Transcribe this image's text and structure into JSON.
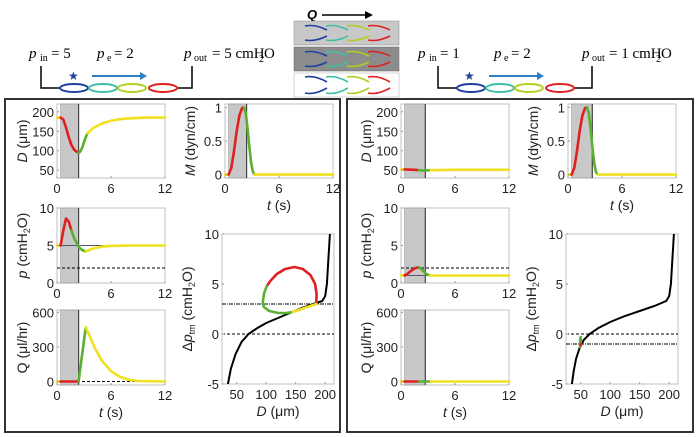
{
  "header": {
    "left": {
      "p_in_label": "p",
      "p_in_sub": "in",
      "p_in_value": "= 5",
      "p_e_label": "p",
      "p_e_sub": "e",
      "p_e_value": "= 2",
      "p_out_label": "p",
      "p_out_sub": "out",
      "p_out_value": "= 5 cmH",
      "p_out_unit_sub": "2",
      "p_out_unit_end": "O"
    },
    "right": {
      "p_in_label": "p",
      "p_in_sub": "in",
      "p_in_value": "= 1",
      "p_e_label": "p",
      "p_e_sub": "e",
      "p_e_value": "= 2",
      "p_out_label": "p",
      "p_out_sub": "out",
      "p_out_value": "= 1 cmH",
      "p_out_unit_sub": "2",
      "p_out_unit_end": "O"
    },
    "center": {
      "flow_label": "Q",
      "panel_backgrounds": [
        "#c8c8c8",
        "#8c8c8c",
        "#ffffff"
      ]
    },
    "lymphangion_colors": [
      "#2040a0",
      "#40c0a0",
      "#b0d020",
      "#e02020"
    ],
    "star_color": "#2040a0",
    "arrow_color": "#2a7fc4"
  },
  "colors": {
    "contraction": "#e02020",
    "relaxation": "#5ab030",
    "diastole": "#f0e020",
    "shade": "#c8c8c8",
    "line": "#000000"
  },
  "chart_data": [
    {
      "id": "left-D",
      "type": "line",
      "panel": "left",
      "xlabel": "",
      "ylabel": "D (μm)",
      "ylabel_italic": "D",
      "ylabel_rest": " (μm)",
      "xlim": [
        0,
        12
      ],
      "ylim": [
        30,
        220
      ],
      "xticks": [
        0,
        6,
        12
      ],
      "yticks": [
        50,
        100,
        150,
        200
      ],
      "shade": [
        0.4,
        2.4
      ],
      "vline": 2.4,
      "segments": [
        {
          "phase": "diastole",
          "x": [
            0,
            0.4
          ],
          "y": [
            185,
            185
          ]
        },
        {
          "phase": "contraction",
          "x": [
            0.4,
            0.7,
            1.0,
            1.3,
            1.6,
            1.9,
            2.2,
            2.4
          ],
          "y": [
            185,
            180,
            160,
            135,
            115,
            103,
            97,
            95
          ]
        },
        {
          "phase": "relaxation",
          "x": [
            2.4,
            2.6,
            2.8,
            3.0,
            3.2,
            3.4
          ],
          "y": [
            95,
            98,
            108,
            122,
            135,
            145
          ]
        },
        {
          "phase": "diastole",
          "x": [
            3.4,
            4,
            5,
            6,
            7,
            8,
            10,
            12
          ],
          "y": [
            145,
            158,
            170,
            177,
            181,
            183,
            185,
            185
          ]
        }
      ]
    },
    {
      "id": "left-M",
      "type": "line",
      "panel": "left",
      "xlabel": "t (s)",
      "ylabel": "M (dyn/cm)",
      "xlim": [
        0,
        12
      ],
      "ylim": [
        -0.05,
        1.05
      ],
      "xticks": [
        0,
        6,
        12
      ],
      "yticks": [
        0,
        0.5,
        1
      ],
      "shade": [
        0.4,
        2.4
      ],
      "vline": 2.4,
      "segments": [
        {
          "phase": "diastole",
          "x": [
            0,
            0.4
          ],
          "y": [
            0,
            0
          ]
        },
        {
          "phase": "contraction",
          "x": [
            0.4,
            0.7,
            1.0,
            1.3,
            1.6,
            1.9,
            2.1
          ],
          "y": [
            0,
            0.1,
            0.35,
            0.65,
            0.88,
            0.99,
            1.0
          ]
        },
        {
          "phase": "relaxation",
          "x": [
            2.1,
            2.3,
            2.5,
            2.7,
            2.9,
            3.1,
            3.3
          ],
          "y": [
            1.0,
            0.92,
            0.7,
            0.42,
            0.18,
            0.04,
            0
          ]
        },
        {
          "phase": "diastole",
          "x": [
            3.3,
            12
          ],
          "y": [
            0,
            0
          ]
        }
      ]
    },
    {
      "id": "left-p",
      "type": "line",
      "panel": "left",
      "xlabel": "",
      "ylabel": "p (cmH2O)",
      "xlim": [
        0,
        12
      ],
      "ylim": [
        0,
        10
      ],
      "xticks": [
        0,
        6,
        12
      ],
      "yticks": [
        0,
        5,
        10
      ],
      "shade": [
        0.4,
        2.4
      ],
      "vline": 2.4,
      "hlines": [
        {
          "y": 5,
          "style": "solid"
        },
        {
          "y": 2,
          "style": "dashed"
        }
      ],
      "segments": [
        {
          "phase": "diastole",
          "x": [
            0,
            0.4
          ],
          "y": [
            5,
            5
          ]
        },
        {
          "phase": "contraction",
          "x": [
            0.4,
            0.7,
            1.0,
            1.3,
            1.6
          ],
          "y": [
            5,
            7.0,
            8.6,
            8.2,
            7.0
          ]
        },
        {
          "phase": "relaxation",
          "x": [
            1.6,
            1.9,
            2.2,
            2.5,
            2.8,
            3.2
          ],
          "y": [
            7.0,
            6.0,
            5.3,
            4.7,
            4.4,
            4.2
          ]
        },
        {
          "phase": "diastole",
          "x": [
            3.2,
            4,
            5,
            6,
            8,
            12
          ],
          "y": [
            4.2,
            4.6,
            4.85,
            4.95,
            5.0,
            5.0
          ]
        }
      ]
    },
    {
      "id": "left-Q",
      "type": "line",
      "panel": "left",
      "xlabel": "t (s)",
      "ylabel": "Q (μl/hr)",
      "xlim": [
        0,
        12
      ],
      "ylim": [
        -30,
        620
      ],
      "xticks": [
        0,
        6,
        12
      ],
      "yticks": [
        0,
        300,
        600
      ],
      "shade": [
        0.4,
        2.4
      ],
      "vline": 2.4,
      "hlines": [
        {
          "y": 0,
          "style": "dashed"
        }
      ],
      "segments": [
        {
          "phase": "diastole",
          "x": [
            0,
            0.4
          ],
          "y": [
            0,
            0
          ]
        },
        {
          "phase": "contraction",
          "x": [
            0.4,
            2.4
          ],
          "y": [
            0,
            0
          ]
        },
        {
          "phase": "relaxation",
          "x": [
            2.4,
            2.8,
            3.2
          ],
          "y": [
            0,
            240,
            470
          ]
        },
        {
          "phase": "diastole",
          "x": [
            3.2,
            3.6,
            4.2,
            5,
            6,
            7,
            8,
            9,
            12
          ],
          "y": [
            470,
            400,
            290,
            180,
            90,
            40,
            15,
            5,
            0
          ]
        }
      ]
    },
    {
      "id": "left-dptm",
      "type": "line",
      "panel": "left",
      "xlabel": "D (μm)",
      "ylabel": "Δp_tm (cmH2O)",
      "xlim": [
        25,
        215
      ],
      "ylim": [
        -5,
        10
      ],
      "xticks": [
        50,
        100,
        150,
        200
      ],
      "yticks": [
        -5,
        0,
        5,
        10
      ],
      "hlines": [
        {
          "y": 0,
          "style": "dashed"
        },
        {
          "y": 3,
          "style": "dashdot"
        }
      ],
      "curve": {
        "x": [
          35,
          40,
          48,
          58,
          70,
          85,
          100,
          120,
          140,
          160,
          180,
          195,
          200,
          203,
          205,
          207,
          208
        ],
        "y": [
          -5,
          -3.5,
          -2.0,
          -0.8,
          0,
          0.6,
          1.1,
          1.6,
          2.1,
          2.6,
          3.0,
          3.3,
          3.8,
          5,
          7,
          9,
          10
        ]
      },
      "segments": [
        {
          "phase": "contraction",
          "x": [
            185,
            185.5,
            183,
            175,
            162,
            148,
            132,
            118,
            107,
            101
          ],
          "y": [
            3,
            4.0,
            5.0,
            5.9,
            6.5,
            6.7,
            6.5,
            6.0,
            5.3,
            4.8
          ]
        },
        {
          "phase": "relaxation",
          "x": [
            101,
            96,
            94,
            96,
            105,
            120,
            135,
            145
          ],
          "y": [
            4.8,
            4.0,
            3.1,
            2.7,
            2.3,
            2.1,
            2.1,
            2.2
          ]
        },
        {
          "phase": "diastole",
          "x": [
            145,
            160,
            172,
            185
          ],
          "y": [
            2.2,
            2.5,
            2.75,
            3
          ]
        }
      ]
    },
    {
      "id": "right-D",
      "type": "line",
      "panel": "right",
      "xlabel": "",
      "ylabel": "D (μm)",
      "xlim": [
        0,
        12
      ],
      "ylim": [
        30,
        220
      ],
      "xticks": [
        0,
        6,
        12
      ],
      "yticks": [
        50,
        100,
        150,
        200
      ],
      "shade": [
        0.4,
        2.7
      ],
      "vline": 2.7,
      "segments": [
        {
          "phase": "diastole",
          "x": [
            0,
            0.4
          ],
          "y": [
            52,
            52
          ]
        },
        {
          "phase": "contraction",
          "x": [
            0.4,
            1.5,
            2.0
          ],
          "y": [
            52,
            51,
            50
          ]
        },
        {
          "phase": "relaxation",
          "x": [
            2.0,
            2.5,
            3.3
          ],
          "y": [
            50,
            49,
            50
          ]
        },
        {
          "phase": "diastole",
          "x": [
            3.3,
            6,
            12
          ],
          "y": [
            50,
            51,
            51
          ]
        }
      ]
    },
    {
      "id": "right-M",
      "type": "line",
      "panel": "right",
      "xlabel": "t (s)",
      "ylabel": "M (dyn/cm)",
      "xlim": [
        0,
        12
      ],
      "ylim": [
        -0.05,
        1.05
      ],
      "xticks": [
        0,
        6,
        12
      ],
      "yticks": [
        0,
        0.5,
        1
      ],
      "shade": [
        0.4,
        2.7
      ],
      "vline": 2.7,
      "segments": [
        {
          "phase": "diastole",
          "x": [
            0,
            0.4
          ],
          "y": [
            0,
            0
          ]
        },
        {
          "phase": "contraction",
          "x": [
            0.4,
            0.7,
            1.0,
            1.3,
            1.6,
            1.9,
            2.1
          ],
          "y": [
            0,
            0.1,
            0.35,
            0.65,
            0.88,
            0.99,
            1.0
          ]
        },
        {
          "phase": "relaxation",
          "x": [
            2.1,
            2.3,
            2.5,
            2.7,
            2.9,
            3.1,
            3.3
          ],
          "y": [
            1.0,
            0.92,
            0.7,
            0.42,
            0.18,
            0.04,
            0
          ]
        },
        {
          "phase": "diastole",
          "x": [
            3.3,
            12
          ],
          "y": [
            0,
            0
          ]
        }
      ]
    },
    {
      "id": "right-p",
      "type": "line",
      "panel": "right",
      "xlabel": "",
      "ylabel": "p (cmH2O)",
      "xlim": [
        0,
        12
      ],
      "ylim": [
        0,
        10
      ],
      "xticks": [
        0,
        6,
        12
      ],
      "yticks": [
        0,
        5,
        10
      ],
      "shade": [
        0.4,
        2.7
      ],
      "vline": 2.7,
      "hlines": [
        {
          "y": 1,
          "style": "solid"
        },
        {
          "y": 2,
          "style": "dashed"
        }
      ],
      "segments": [
        {
          "phase": "diastole",
          "x": [
            0,
            0.4
          ],
          "y": [
            1,
            1
          ]
        },
        {
          "phase": "contraction",
          "x": [
            0.4,
            0.8,
            1.2,
            1.6,
            2.0
          ],
          "y": [
            1,
            1.3,
            1.7,
            2.0,
            2.1
          ]
        },
        {
          "phase": "relaxation",
          "x": [
            2.0,
            2.4,
            2.8,
            3.2
          ],
          "y": [
            2.1,
            1.7,
            1.2,
            1.0
          ]
        },
        {
          "phase": "diastole",
          "x": [
            3.2,
            12
          ],
          "y": [
            1,
            1
          ]
        }
      ]
    },
    {
      "id": "right-Q",
      "type": "line",
      "panel": "right",
      "xlabel": "t (s)",
      "ylabel": "Q (μl/hr)",
      "xlim": [
        0,
        12
      ],
      "ylim": [
        -30,
        620
      ],
      "xticks": [
        0,
        6,
        12
      ],
      "yticks": [
        0,
        300,
        600
      ],
      "shade": [
        0.4,
        2.7
      ],
      "vline": 2.7,
      "hlines": [
        {
          "y": 0,
          "style": "dashed"
        }
      ],
      "segments": [
        {
          "phase": "diastole",
          "x": [
            0,
            0.4
          ],
          "y": [
            0,
            0
          ]
        },
        {
          "phase": "contraction",
          "x": [
            0.4,
            2.0
          ],
          "y": [
            0,
            0
          ]
        },
        {
          "phase": "relaxation",
          "x": [
            2.0,
            3.3
          ],
          "y": [
            0,
            0
          ]
        },
        {
          "phase": "diastole",
          "x": [
            3.3,
            12
          ],
          "y": [
            0,
            0
          ]
        }
      ]
    },
    {
      "id": "right-dptm",
      "type": "line",
      "panel": "right",
      "xlabel": "D (μm)",
      "ylabel": "Δp_tm (cmH2O)",
      "xlim": [
        25,
        215
      ],
      "ylim": [
        -5,
        10
      ],
      "xticks": [
        50,
        100,
        150,
        200
      ],
      "yticks": [
        -5,
        0,
        5,
        10
      ],
      "hlines": [
        {
          "y": 0,
          "style": "dashed"
        },
        {
          "y": -1,
          "style": "dashdot"
        }
      ],
      "curve": {
        "x": [
          35,
          38,
          42,
          48,
          55,
          65,
          80,
          100,
          125,
          150,
          175,
          195,
          200,
          203,
          205,
          207,
          208
        ],
        "y": [
          -5,
          -3.7,
          -2.5,
          -1.4,
          -0.6,
          0,
          0.6,
          1.2,
          1.8,
          2.3,
          2.8,
          3.3,
          3.8,
          5,
          7,
          9,
          10
        ]
      },
      "segments": [
        {
          "phase": "relaxation",
          "x": [
            49,
            49,
            50,
            50
          ],
          "y": [
            -1.3,
            -0.6,
            -0.3,
            -1.2
          ]
        },
        {
          "phase": "contraction",
          "x": [
            50,
            51
          ],
          "y": [
            -1.1,
            -1.0
          ]
        }
      ]
    }
  ]
}
